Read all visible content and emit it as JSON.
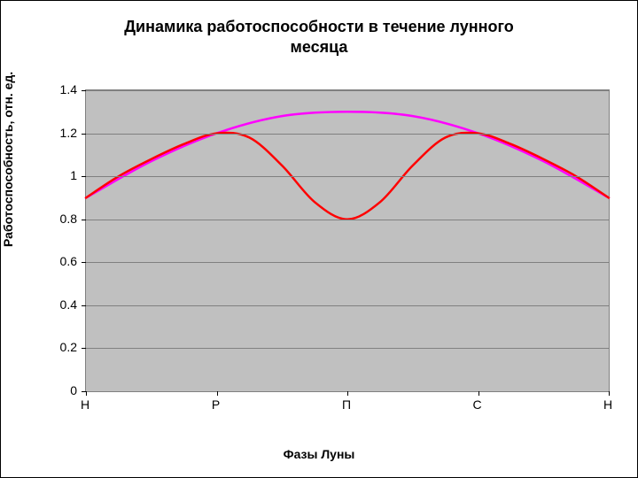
{
  "chart": {
    "type": "line",
    "title_line1": "Динамика работоспособности в течение лунного",
    "title_line2": "месяца",
    "title_fontsize": 18,
    "xlabel": "Фазы Луны",
    "ylabel": "Работоспособность, отн. ед.",
    "label_fontsize": 14,
    "background_color": "#ffffff",
    "plot_background_color": "#c0c0c0",
    "grid_color": "#808080",
    "border_color": "#000000",
    "ylim": [
      0,
      1.4
    ],
    "ytick_step": 0.2,
    "yticks": [
      0,
      0.2,
      0.4,
      0.6,
      0.8,
      1,
      1.2,
      1.4
    ],
    "xtick_labels": [
      "Н",
      "Р",
      "П",
      "С",
      "Н"
    ],
    "xtick_positions": [
      0,
      0.25,
      0.5,
      0.75,
      1.0
    ],
    "series": [
      {
        "name": "series-magenta",
        "color": "#ff00ff",
        "line_width": 2.5,
        "x": [
          0,
          0.125,
          0.25,
          0.375,
          0.5,
          0.625,
          0.75,
          0.875,
          1.0
        ],
        "y": [
          0.9,
          1.07,
          1.2,
          1.28,
          1.3,
          1.28,
          1.2,
          1.07,
          0.9
        ]
      },
      {
        "name": "series-red",
        "color": "#ff0000",
        "line_width": 2.5,
        "x": [
          0,
          0.0625,
          0.125,
          0.1875,
          0.25,
          0.3125,
          0.375,
          0.4375,
          0.5,
          0.5625,
          0.625,
          0.6875,
          0.75,
          0.8125,
          0.875,
          0.9375,
          1.0
        ],
        "y": [
          0.9,
          1.0,
          1.08,
          1.15,
          1.2,
          1.18,
          1.05,
          0.88,
          0.8,
          0.88,
          1.05,
          1.18,
          1.2,
          1.15,
          1.08,
          1.0,
          0.9
        ]
      }
    ]
  }
}
